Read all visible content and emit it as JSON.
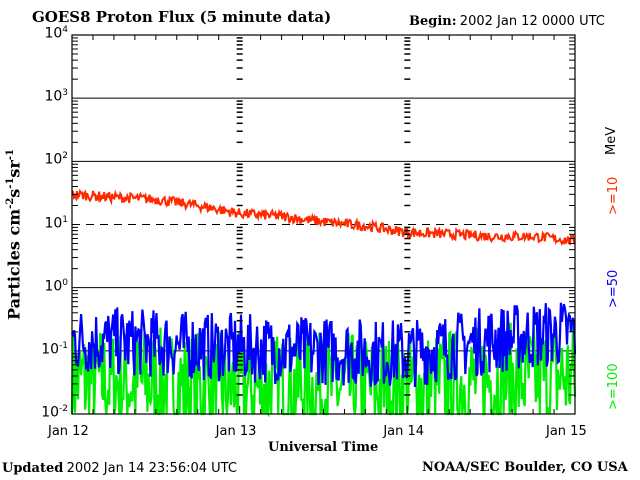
{
  "chart_data": {
    "type": "line",
    "title": "GOES8 Proton Flux (5 minute data)",
    "begin_label": "Begin:",
    "begin_value": "2002 Jan 12 0000 UTC",
    "xlabel": "Universal Time",
    "ylabel_base": "Particles cm",
    "ylabel_parts": [
      {
        "text": "Particles cm",
        "sup": "-2"
      },
      {
        "text": "s",
        "sup": "-1"
      },
      {
        "text": "sr",
        "sup": "-1"
      }
    ],
    "units_label": "MeV",
    "x_ticks": [
      "Jan 12",
      "Jan 13",
      "Jan 14",
      "Jan 15"
    ],
    "xlim_days": [
      0,
      3
    ],
    "y_scale": "log",
    "ylim": [
      0.01,
      10000
    ],
    "y_ticks": [
      {
        "exp": 4,
        "label_base": "10",
        "label_exp": "4"
      },
      {
        "exp": 3,
        "label_base": "10",
        "label_exp": "3"
      },
      {
        "exp": 2,
        "label_base": "10",
        "label_exp": "2"
      },
      {
        "exp": 1,
        "label_base": "10",
        "label_exp": "1"
      },
      {
        "exp": 0,
        "label_base": "10",
        "label_exp": "0"
      },
      {
        "exp": -1,
        "label_base": "10",
        "label_exp": "-1"
      },
      {
        "exp": -2,
        "label_base": "10",
        "label_exp": "-2"
      }
    ],
    "solid_gridlines": [
      1000,
      100,
      1,
      0.1
    ],
    "dashed_gridlines": [
      10
    ],
    "series": [
      {
        "name": ">=10",
        "color": "#ff2a00",
        "day_values": [
          [
            0.0,
            30
          ],
          [
            0.25,
            27
          ],
          [
            0.5,
            25
          ],
          [
            0.75,
            20
          ],
          [
            1.0,
            15
          ],
          [
            1.25,
            13.5
          ],
          [
            1.5,
            11
          ],
          [
            1.75,
            9.5
          ],
          [
            2.0,
            7.5
          ],
          [
            2.25,
            7
          ],
          [
            2.5,
            6.5
          ],
          [
            2.75,
            6.5
          ],
          [
            3.0,
            5.5
          ]
        ]
      },
      {
        "name": ">=50",
        "color": "#0000ff",
        "day_values": [
          [
            0.0,
            0.15
          ],
          [
            0.5,
            0.13
          ],
          [
            1.0,
            0.11
          ],
          [
            1.5,
            0.1
          ],
          [
            2.0,
            0.09
          ],
          [
            2.5,
            0.15
          ],
          [
            3.0,
            0.2
          ]
        ]
      },
      {
        "name": ">=100",
        "color": "#00ee00",
        "day_values": [
          [
            0.0,
            0.035
          ],
          [
            0.5,
            0.03
          ],
          [
            1.0,
            0.025
          ],
          [
            1.5,
            0.025
          ],
          [
            2.0,
            0.025
          ],
          [
            2.5,
            0.035
          ],
          [
            3.0,
            0.04
          ]
        ]
      }
    ],
    "legend_placement": "right"
  },
  "footer": {
    "updated_label": "Updated",
    "updated_value": "2002 Jan 14 23:56:04 UTC",
    "credit": "NOAA/SEC Boulder, CO USA"
  }
}
